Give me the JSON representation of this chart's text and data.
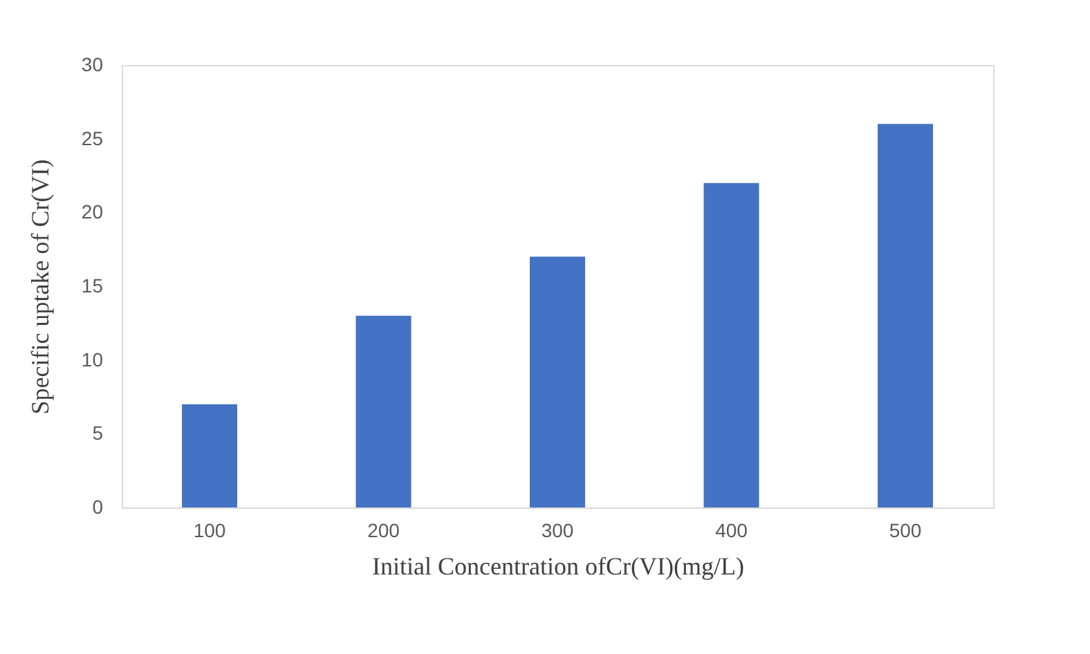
{
  "chart_data": {
    "type": "bar",
    "xlabel": "Initial Concentration ofCr(VI)(mg/L)",
    "ylabel": "Specific uptake of Cr(VI)",
    "categories": [
      "100",
      "200",
      "300",
      "400",
      "500"
    ],
    "values": [
      7,
      13,
      17,
      22,
      26
    ],
    "color": "#4472c4",
    "ylim": [
      0,
      30
    ],
    "yticks": [
      0,
      5,
      10,
      15,
      20,
      25,
      30
    ],
    "grid": false
  }
}
